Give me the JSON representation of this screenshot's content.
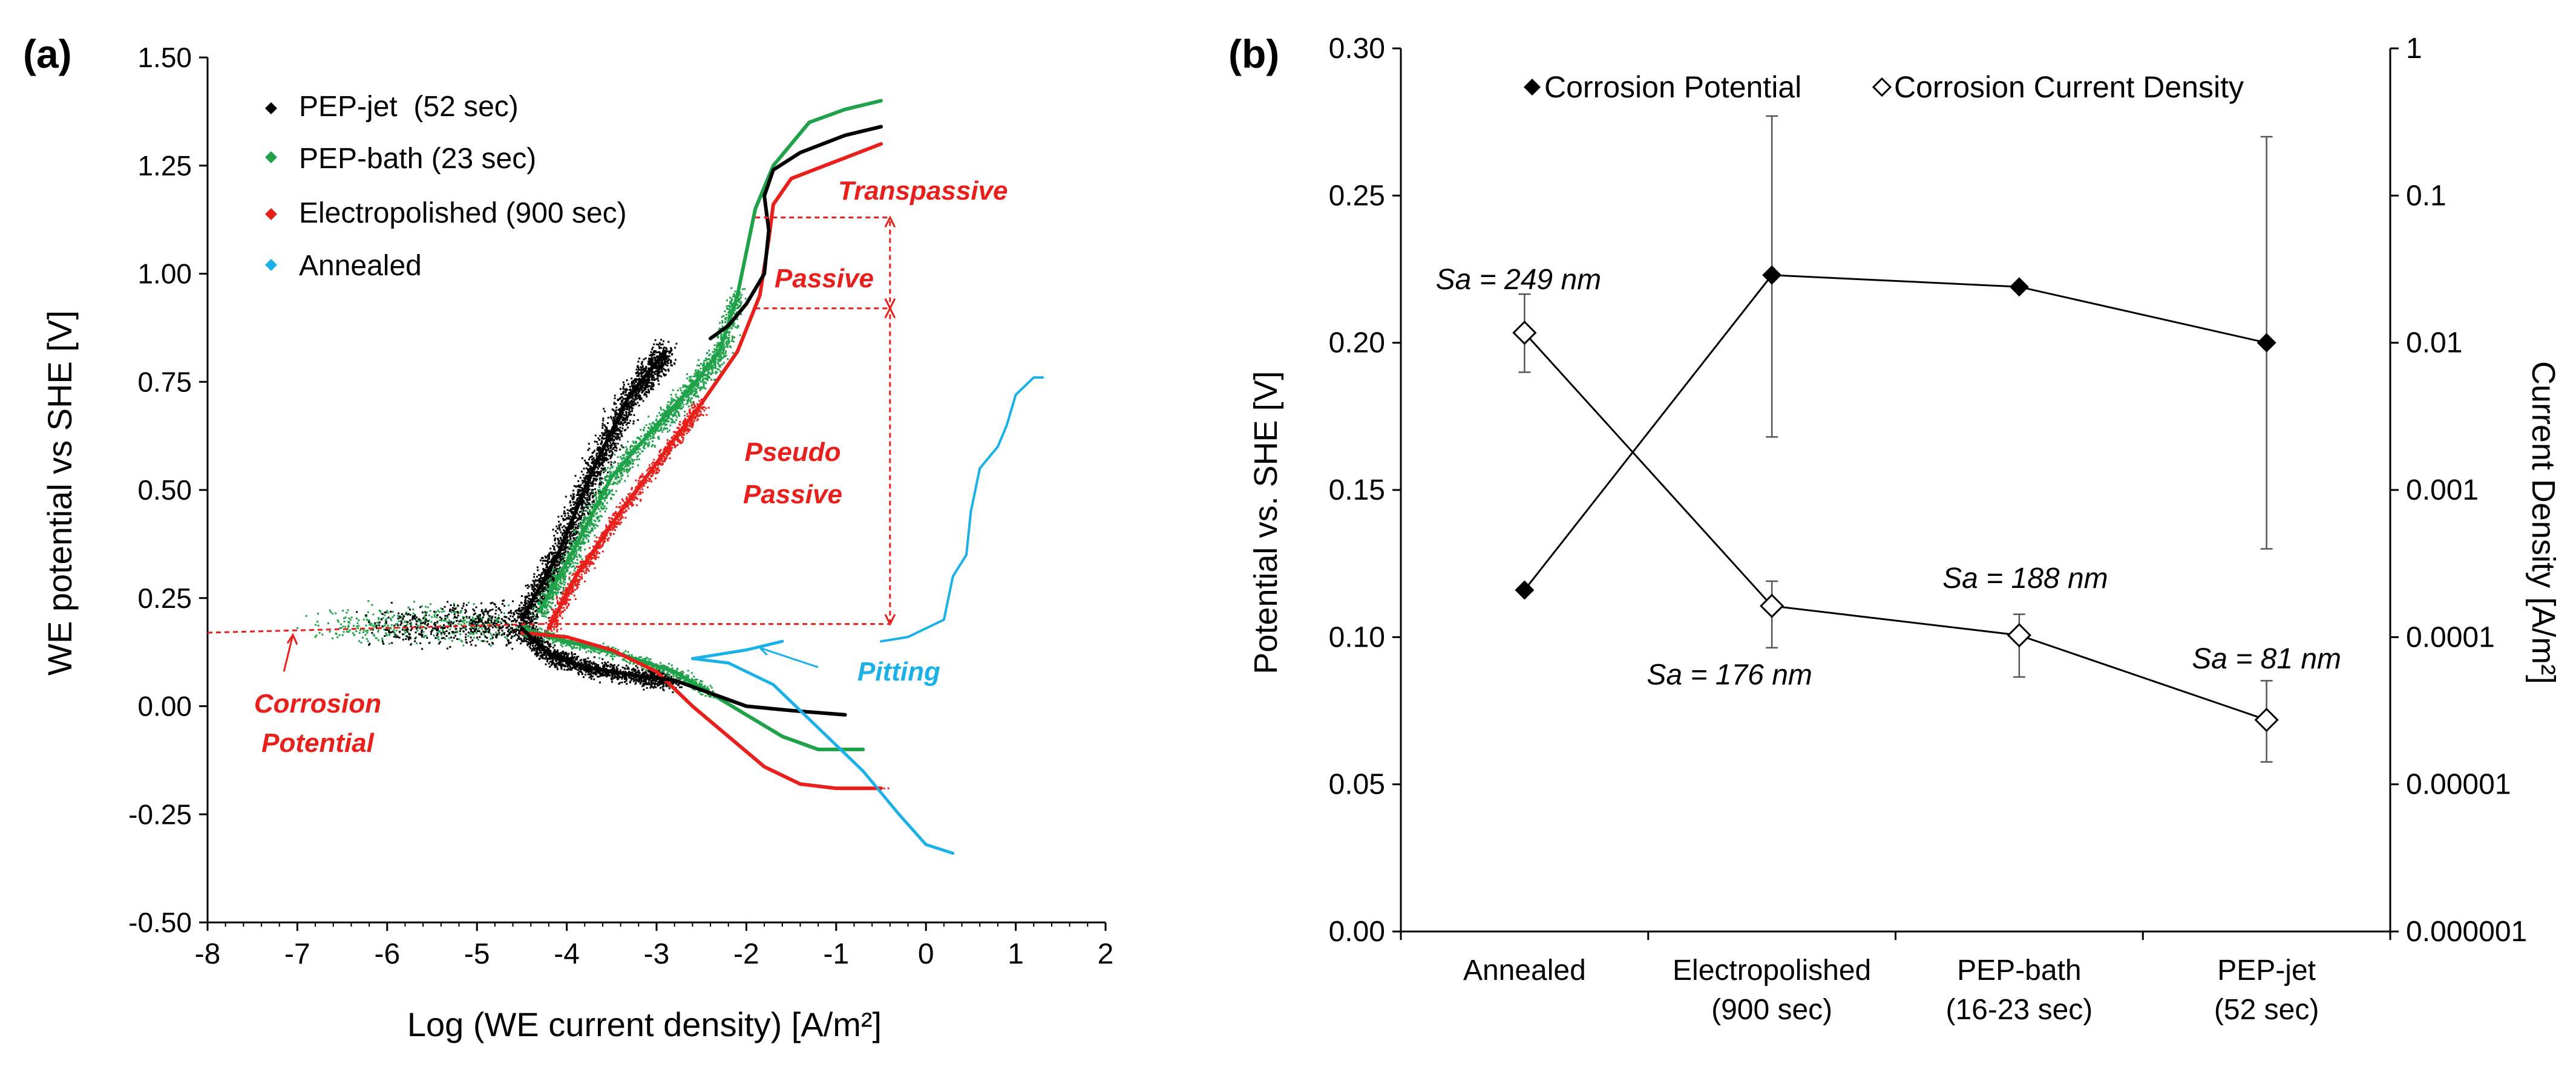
{
  "panel_a": {
    "label": "(a)",
    "ylabel": "WE potential vs SHE [V]",
    "xlabel": "Log (WE current density) [A/m²]",
    "xticks": [
      "-8",
      "-7",
      "-6",
      "-5",
      "-4",
      "-3",
      "-2",
      "-1",
      "0",
      "1",
      "2"
    ],
    "yticks": [
      "-0.50",
      "-0.25",
      "0.00",
      "0.25",
      "0.50",
      "0.75",
      "1.00",
      "1.25",
      "1.50"
    ],
    "legend": [
      "PEP-jet  (52 sec)",
      "PEP-bath (23 sec)",
      "Electropolished (900 sec)",
      "Annealed"
    ],
    "annotations": {
      "transpassive": "Transpassive",
      "passive": "Passive",
      "pseudo1": "Pseudo",
      "pseudo2": "Passive",
      "pitting": "Pitting",
      "corrosion1": "Corrosion",
      "corrosion2": "Potential"
    }
  },
  "panel_b": {
    "label": "(b)",
    "ylabel": "Potential vs. SHE [V]",
    "ylabel_right": "Current Density [A/m²]",
    "yticks": [
      "0.00",
      "0.05",
      "0.10",
      "0.15",
      "0.20",
      "0.25",
      "0.30"
    ],
    "yticks_right": [
      "1",
      "0.1",
      "0.01",
      "0.001",
      "0.0001",
      "0.00001",
      "0.000001"
    ],
    "categories": [
      {
        "line1": "Annealed",
        "line2": ""
      },
      {
        "line1": "Electropolished",
        "line2": "(900 sec)"
      },
      {
        "line1": "PEP-bath",
        "line2": "(16-23 sec)"
      },
      {
        "line1": "PEP-jet",
        "line2": "(52 sec)"
      }
    ],
    "legend": [
      "Corrosion Potential",
      "Corrosion Current Density"
    ],
    "sa_labels": [
      "Sa = 249 nm",
      "Sa = 176 nm",
      "Sa = 188 nm",
      "Sa = 81 nm"
    ]
  },
  "colors": {
    "pep_jet": "#000000",
    "pep_bath": "#1fa24a",
    "electropolished": "#e8201c",
    "annealed": "#1ab0e8",
    "annotation_red": "#e8201c"
  },
  "chart_data": [
    {
      "type": "scatter",
      "title": "(a)",
      "xlabel": "Log (WE current density) [A/m²]",
      "ylabel": "WE potential vs SHE [V]",
      "xlim": [
        -8,
        2
      ],
      "ylim": [
        -0.5,
        1.5
      ],
      "series": [
        {
          "name": "PEP-jet  (52 sec)",
          "color": "#000000",
          "cathodic": [
            [
              -4.5,
              0.18
            ],
            [
              -4.2,
              0.12
            ],
            [
              -3.8,
              0.09
            ],
            [
              -3.2,
              0.07
            ],
            [
              -2.8,
              0.06
            ],
            [
              -2.4,
              0.03
            ],
            [
              -2.0,
              0.0
            ],
            [
              -1.5,
              -0.01
            ],
            [
              -0.9,
              -0.02
            ]
          ],
          "anodic": [
            [
              -4.5,
              0.2
            ],
            [
              -4.1,
              0.35
            ],
            [
              -3.7,
              0.55
            ],
            [
              -3.3,
              0.72
            ],
            [
              -2.9,
              0.82
            ]
          ],
          "anodic2": [
            [
              -2.4,
              0.85
            ],
            [
              -2.2,
              0.88
            ],
            [
              -2.0,
              0.93
            ],
            [
              -1.8,
              1.0
            ],
            [
              -1.75,
              1.1
            ],
            [
              -1.8,
              1.18
            ],
            [
              -1.7,
              1.24
            ],
            [
              -1.4,
              1.28
            ],
            [
              -0.9,
              1.32
            ],
            [
              -0.5,
              1.34
            ]
          ]
        },
        {
          "name": "PEP-bath (23 sec)",
          "color": "#1fa24a",
          "cathodic": [
            [
              -4.5,
              0.18
            ],
            [
              -4.0,
              0.15
            ],
            [
              -3.4,
              0.12
            ],
            [
              -2.8,
              0.08
            ],
            [
              -2.4,
              0.03
            ],
            [
              -2.0,
              -0.02
            ],
            [
              -1.6,
              -0.07
            ],
            [
              -1.2,
              -0.1
            ],
            [
              -0.7,
              -0.1
            ]
          ],
          "anodic": [
            [
              -4.3,
              0.22
            ],
            [
              -3.9,
              0.37
            ],
            [
              -3.5,
              0.53
            ],
            [
              -3.0,
              0.65
            ],
            [
              -2.6,
              0.74
            ],
            [
              -2.3,
              0.82
            ],
            [
              -2.1,
              0.95
            ],
            [
              -2.0,
              1.05
            ],
            [
              -1.9,
              1.15
            ],
            [
              -1.7,
              1.25
            ],
            [
              -1.3,
              1.35
            ],
            [
              -0.9,
              1.38
            ],
            [
              -0.5,
              1.4
            ]
          ]
        },
        {
          "name": "Electropolished (900 sec)",
          "color": "#e8201c",
          "cathodic": [
            [
              -4.5,
              0.17
            ],
            [
              -4.0,
              0.16
            ],
            [
              -3.5,
              0.13
            ],
            [
              -3.0,
              0.08
            ],
            [
              -2.6,
              0.0
            ],
            [
              -2.2,
              -0.07
            ],
            [
              -1.8,
              -0.14
            ],
            [
              -1.4,
              -0.18
            ],
            [
              -1.0,
              -0.19
            ],
            [
              -0.5,
              -0.19
            ]
          ],
          "anodic": [
            [
              -4.2,
              0.18
            ],
            [
              -3.9,
              0.3
            ],
            [
              -3.4,
              0.45
            ],
            [
              -2.9,
              0.59
            ],
            [
              -2.5,
              0.7
            ],
            [
              -2.1,
              0.82
            ],
            [
              -1.85,
              0.95
            ],
            [
              -1.75,
              1.08
            ],
            [
              -1.7,
              1.16
            ],
            [
              -1.5,
              1.22
            ],
            [
              -1.0,
              1.26
            ],
            [
              -0.5,
              1.3
            ]
          ]
        },
        {
          "name": "Annealed",
          "color": "#1ab0e8",
          "cathodic": [
            [
              -2.6,
              0.11
            ],
            [
              -2.2,
              0.1
            ],
            [
              -1.7,
              0.05
            ],
            [
              -1.2,
              -0.05
            ],
            [
              -0.7,
              -0.15
            ],
            [
              -0.3,
              -0.25
            ],
            [
              0.0,
              -0.32
            ],
            [
              0.3,
              -0.34
            ]
          ],
          "pitting": [
            [
              -2.6,
              0.11
            ],
            [
              -2.0,
              0.13
            ],
            [
              -1.6,
              0.15
            ]
          ],
          "anodic": [
            [
              -0.5,
              0.15
            ],
            [
              -0.2,
              0.16
            ],
            [
              0.2,
              0.2
            ],
            [
              0.3,
              0.3
            ],
            [
              0.45,
              0.35
            ],
            [
              0.5,
              0.45
            ],
            [
              0.6,
              0.55
            ],
            [
              0.8,
              0.6
            ],
            [
              0.9,
              0.65
            ],
            [
              1.0,
              0.72
            ],
            [
              1.2,
              0.76
            ],
            [
              1.3,
              0.76
            ]
          ]
        }
      ],
      "annotations": [
        {
          "text": "Transpassive",
          "x": -1.2,
          "y": 1.15
        },
        {
          "text": "Passive",
          "x": -1.5,
          "y": 0.98
        },
        {
          "text": "Pseudo Passive",
          "x": -1.7,
          "y": 0.55
        },
        {
          "text": "Pitting",
          "x": -1.1,
          "y": 0.07
        },
        {
          "text": "Corrosion Potential",
          "x": -7.0,
          "y": -0.03
        }
      ],
      "reference_lines": {
        "corrosion_potential_y": 0.17,
        "levels_y": [
          0.19,
          0.92,
          1.13
        ],
        "level_x": -0.4
      },
      "legend_position": "top-left"
    },
    {
      "type": "line",
      "title": "(b)",
      "categories": [
        "Annealed",
        "Electropolished (900 sec)",
        "PEP-bath (16-23 sec)",
        "PEP-jet (52 sec)"
      ],
      "ylabel": "Potential vs. SHE [V]",
      "ylabel_right": "Current Density [A/m²]",
      "ylim": [
        0,
        0.3
      ],
      "ylim_right_log": [
        1e-06,
        1
      ],
      "series": [
        {
          "name": "Corrosion Potential",
          "axis": "left",
          "marker": "filled-diamond",
          "values": [
            0.116,
            0.223,
            0.219,
            0.2
          ],
          "error": [
            null,
            [
              0.168,
              0.277
            ],
            null,
            [
              0.13,
              0.27
            ]
          ]
        },
        {
          "name": "Corrosion Current Density",
          "axis": "right",
          "marker": "open-diamond",
          "values": [
            0.0117,
            0.000163,
            0.000103,
            2.74e-05
          ],
          "error": [
            [
              0.00631,
              0.0214
            ],
            [
              8.47e-05,
              0.00024
            ],
            [
              5.36e-05,
              0.000143
            ],
            [
              1.42e-05,
              5.06e-05
            ]
          ]
        }
      ],
      "point_labels": [
        "Sa = 249 nm",
        "Sa = 176 nm",
        "Sa = 188 nm",
        "Sa = 81 nm"
      ],
      "legend_position": "top"
    }
  ]
}
